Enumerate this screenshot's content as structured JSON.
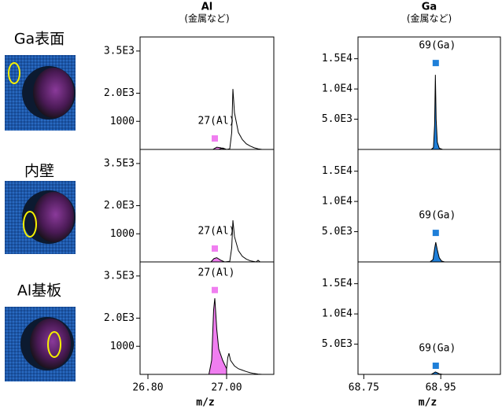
{
  "row_labels": [
    "Ga表面",
    "内壁",
    "Al基板"
  ],
  "chart_data": [
    {
      "type": "area",
      "title": "Al",
      "subtitle": "(金属など)",
      "xlim": [
        26.78,
        27.12
      ],
      "ylim": [
        0,
        4000
      ],
      "yticks": [
        {
          "value": 3500,
          "label": "3.5E3"
        },
        {
          "value": 2000,
          "label": "2.0E3"
        },
        1000
      ],
      "annotation": "27(Al)",
      "marker": {
        "x": 26.97,
        "y": 390,
        "color": "#f07ef0"
      },
      "series": [
        {
          "color": "#f07ef0",
          "fill": true,
          "x": [
            26.965,
            26.975,
            26.985,
            26.995
          ],
          "values": [
            0,
            80,
            60,
            0
          ]
        },
        {
          "color": "#000000",
          "fill": false,
          "x": [
            26.98,
            26.99,
            27.0,
            27.008,
            27.013,
            27.016,
            27.02,
            27.03,
            27.04,
            27.05,
            27.06,
            27.07,
            27.08,
            27.09,
            27.12
          ],
          "values": [
            0,
            50,
            0,
            20,
            600,
            2150,
            1300,
            600,
            350,
            200,
            120,
            60,
            20,
            0,
            0
          ]
        }
      ]
    },
    {
      "type": "area",
      "title": "Ga",
      "subtitle": "(金属など)",
      "xlim": [
        68.735,
        69.105
      ],
      "ylim": [
        0,
        18600
      ],
      "yticks": [
        {
          "value": 15000,
          "label": "1.5E4"
        },
        {
          "value": 10000,
          "label": "1.0E4"
        },
        {
          "value": 5000,
          "label": "5.0E3"
        }
      ],
      "annotation": "69(Ga)",
      "marker": {
        "x": 68.937,
        "y": 14290,
        "color": "#1f7fd8"
      },
      "series": [
        {
          "color": "#1f7fd8",
          "fill": true,
          "x": [
            68.925,
            68.931,
            68.934,
            68.936,
            68.938,
            68.941,
            68.946,
            68.955
          ],
          "values": [
            0,
            300,
            4000,
            12340,
            5000,
            1200,
            200,
            0
          ]
        }
      ]
    },
    {
      "type": "area",
      "xlim": [
        26.78,
        27.12
      ],
      "ylim": [
        0,
        4000
      ],
      "yticks": [
        {
          "value": 3500,
          "label": "3.5E3"
        },
        {
          "value": 2000,
          "label": "2.0E3"
        },
        1000
      ],
      "annotation": "27(Al)",
      "marker": {
        "x": 26.97,
        "y": 475,
        "color": "#f07ef0"
      },
      "series": [
        {
          "color": "#f07ef0",
          "fill": true,
          "x": [
            26.96,
            26.968,
            26.975,
            26.985,
            26.995
          ],
          "values": [
            0,
            120,
            150,
            60,
            0
          ]
        },
        {
          "color": "#000000",
          "fill": false,
          "x": [
            26.995,
            27.008,
            27.013,
            27.016,
            27.02,
            27.03,
            27.04,
            27.05,
            27.06,
            27.075,
            27.08,
            27.085,
            27.12
          ],
          "values": [
            0,
            20,
            500,
            1480,
            900,
            400,
            200,
            100,
            40,
            0,
            60,
            0,
            0
          ]
        }
      ]
    },
    {
      "type": "area",
      "xlim": [
        68.735,
        69.105
      ],
      "ylim": [
        0,
        18600
      ],
      "yticks": [
        {
          "value": 15000,
          "label": "1.5E4"
        },
        {
          "value": 10000,
          "label": "1.0E4"
        },
        {
          "value": 5000,
          "label": "5.0E3"
        }
      ],
      "annotation": "69(Ga)",
      "marker": {
        "x": 68.937,
        "y": 4800,
        "color": "#1f7fd8"
      },
      "series": [
        {
          "color": "#1f7fd8",
          "fill": true,
          "x": [
            68.922,
            68.93,
            68.934,
            68.937,
            68.941,
            68.946,
            68.952,
            68.96
          ],
          "values": [
            0,
            400,
            2200,
            3250,
            2000,
            700,
            150,
            0
          ]
        }
      ]
    },
    {
      "type": "area",
      "xlim": [
        26.78,
        27.12
      ],
      "ylim": [
        0,
        4000
      ],
      "xlabel": "m/z",
      "xticks": [
        {
          "value": 26.8,
          "label": "26.80"
        },
        {
          "value": 27.0,
          "label": "27.00"
        }
      ],
      "yticks": [
        {
          "value": 3500,
          "label": "3.5E3"
        },
        {
          "value": 2000,
          "label": "2.0E3"
        },
        1000
      ],
      "annotation": "27(Al)",
      "marker": {
        "x": 26.97,
        "y": 3000,
        "color": "#f07ef0"
      },
      "series": [
        {
          "color": "#f07ef0",
          "fill": true,
          "x": [
            26.955,
            26.962,
            26.967,
            26.97,
            26.975,
            26.98,
            26.99,
            27.0
          ],
          "values": [
            0,
            500,
            2300,
            2710,
            1600,
            900,
            500,
            200
          ]
        },
        {
          "color": "#000000",
          "fill": false,
          "x": [
            27.0,
            27.003,
            27.006,
            27.01,
            27.02,
            27.03,
            27.04,
            27.05,
            27.06,
            27.07,
            27.08,
            27.09,
            27.12
          ],
          "values": [
            200,
            600,
            750,
            500,
            300,
            200,
            150,
            100,
            60,
            30,
            10,
            0,
            0
          ]
        }
      ]
    },
    {
      "type": "area",
      "xlim": [
        68.735,
        69.105
      ],
      "ylim": [
        0,
        18600
      ],
      "xlabel": "m/z",
      "xticks": [
        {
          "value": 68.75,
          "label": "68.75"
        },
        {
          "value": 68.95,
          "label": "68.95"
        }
      ],
      "yticks": [
        {
          "value": 15000,
          "label": "1.5E4"
        },
        {
          "value": 10000,
          "label": "1.0E4"
        },
        {
          "value": 5000,
          "label": "5.0E3"
        }
      ],
      "annotation": "69(Ga)",
      "marker": {
        "x": 68.937,
        "y": 1430,
        "color": "#1f7fd8"
      },
      "series": [
        {
          "color": "#1f7fd8",
          "fill": true,
          "x": [
            68.925,
            68.932,
            68.936,
            68.94,
            68.946,
            68.955
          ],
          "values": [
            0,
            250,
            400,
            300,
            100,
            0
          ]
        }
      ]
    }
  ]
}
